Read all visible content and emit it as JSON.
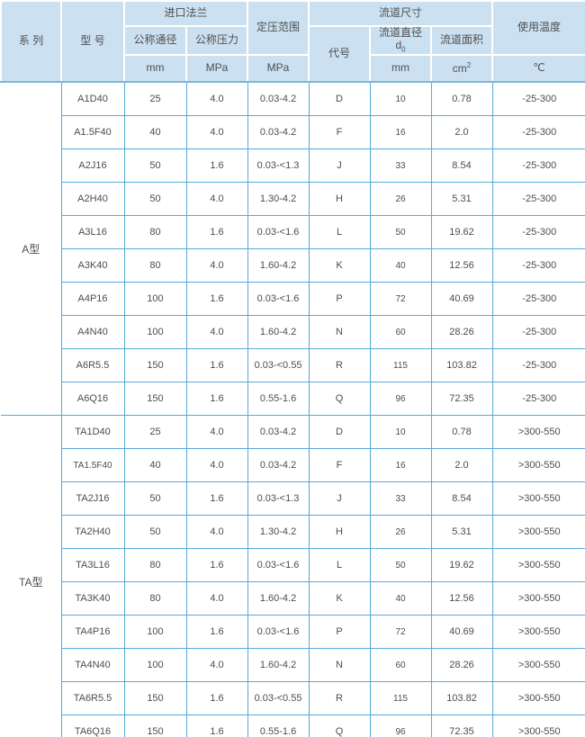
{
  "colors": {
    "header_bg": "#cbe0f0",
    "grid_line": "#58a9da",
    "accent_line": "#7cb5dc",
    "text": "#4e4f51"
  },
  "table": {
    "header": {
      "series": "系 列",
      "model": "型 号",
      "inlet_flange": "进口法兰",
      "nominal_diameter": "公称通径",
      "nominal_pressure": "公称压力",
      "pressure_range": "定压范围",
      "flow_channel_size": "流道尺寸",
      "code": "代号",
      "channel_diameter": "流道直径",
      "channel_diameter_symbol": "d",
      "channel_diameter_subscript": "0",
      "channel_area": "流道面积",
      "operating_temperature": "使用温度",
      "unit_diameter": "mm",
      "unit_pressure": "MPa",
      "unit_range": "MPa",
      "unit_channel_diameter": "mm",
      "unit_channel_area_base": "cm",
      "unit_channel_area_sup": "2",
      "unit_temperature": "℃"
    },
    "groups": [
      {
        "series": "A型",
        "rows": [
          [
            "A1D40",
            "25",
            "4.0",
            "0.03-4.2",
            "D",
            "10",
            "0.78",
            "-25-300"
          ],
          [
            "A1.5F40",
            "40",
            "4.0",
            "0.03-4.2",
            "F",
            "16",
            "2.0",
            "-25-300"
          ],
          [
            "A2J16",
            "50",
            "1.6",
            "0.03-<1.3",
            "J",
            "33",
            "8.54",
            "-25-300"
          ],
          [
            "A2H40",
            "50",
            "4.0",
            "1.30-4.2",
            "H",
            "26",
            "5.31",
            "-25-300"
          ],
          [
            "A3L16",
            "80",
            "1.6",
            "0.03-<1.6",
            "L",
            "50",
            "19.62",
            "-25-300"
          ],
          [
            "A3K40",
            "80",
            "4.0",
            "1.60-4.2",
            "K",
            "40",
            "12.56",
            "-25-300"
          ],
          [
            "A4P16",
            "100",
            "1.6",
            "0.03-<1.6",
            "P",
            "72",
            "40.69",
            "-25-300"
          ],
          [
            "A4N40",
            "100",
            "4.0",
            "1.60-4.2",
            "N",
            "60",
            "28.26",
            "-25-300"
          ],
          [
            "A6R5.5",
            "150",
            "1.6",
            "0.03-<0.55",
            "R",
            "115",
            "103.82",
            "-25-300"
          ],
          [
            "A6Q16",
            "150",
            "1.6",
            "0.55-1.6",
            "Q",
            "96",
            "72.35",
            "-25-300"
          ]
        ]
      },
      {
        "series": "TA型",
        "rows": [
          [
            "TA1D40",
            "25",
            "4.0",
            "0.03-4.2",
            "D",
            "10",
            "0.78",
            ">300-550"
          ],
          [
            "TA1.5F40",
            "40",
            "4.0",
            "0.03-4.2",
            "F",
            "16",
            "2.0",
            ">300-550"
          ],
          [
            "TA2J16",
            "50",
            "1.6",
            "0.03-<1.3",
            "J",
            "33",
            "8.54",
            ">300-550"
          ],
          [
            "TA2H40",
            "50",
            "4.0",
            "1.30-4.2",
            "H",
            "26",
            "5.31",
            ">300-550"
          ],
          [
            "TA3L16",
            "80",
            "1.6",
            "0.03-<1.6",
            "L",
            "50",
            "19.62",
            ">300-550"
          ],
          [
            "TA3K40",
            "80",
            "4.0",
            "1.60-4.2",
            "K",
            "40",
            "12.56",
            ">300-550"
          ],
          [
            "TA4P16",
            "100",
            "1.6",
            "0.03-<1.6",
            "P",
            "72",
            "40.69",
            ">300-550"
          ],
          [
            "TA4N40",
            "100",
            "4.0",
            "1.60-4.2",
            "N",
            "60",
            "28.26",
            ">300-550"
          ],
          [
            "TA6R5.5",
            "150",
            "1.6",
            "0.03-<0.55",
            "R",
            "115",
            "103.82",
            ">300-550"
          ],
          [
            "TA6Q16",
            "150",
            "1.6",
            "0.55-1.6",
            "Q",
            "96",
            "72.35",
            ">300-550"
          ]
        ]
      }
    ]
  }
}
